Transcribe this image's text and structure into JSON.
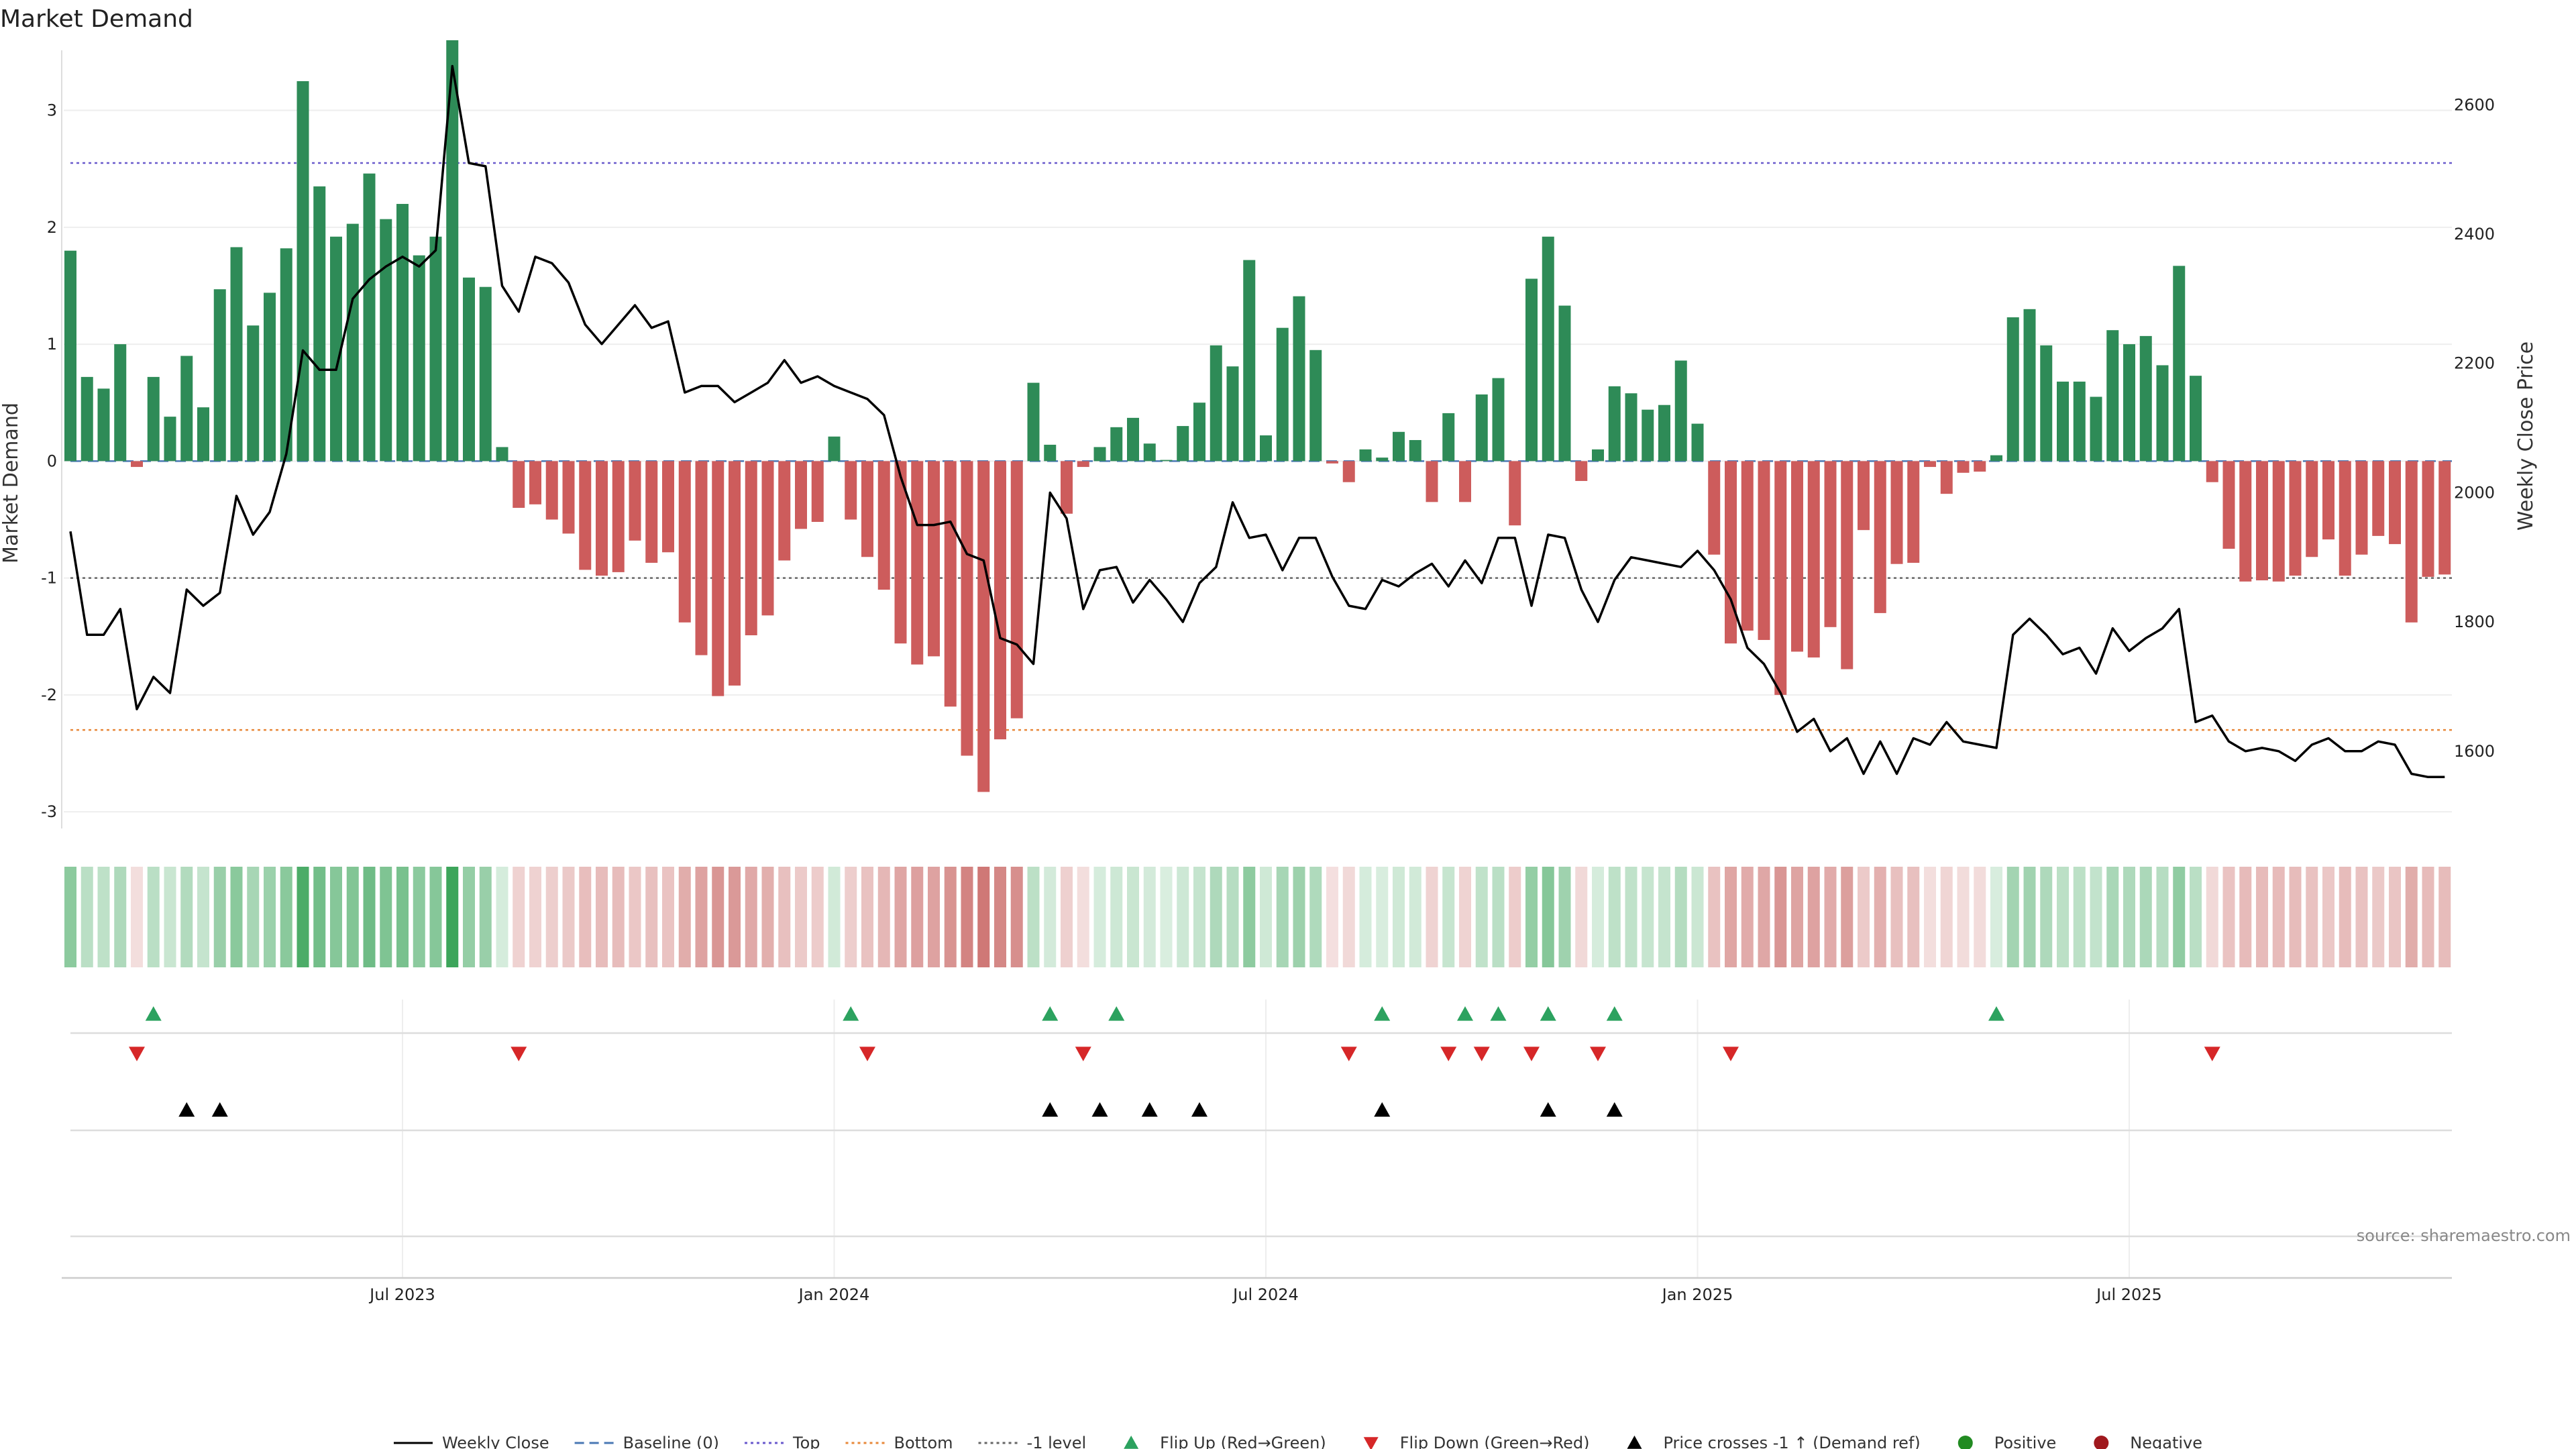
{
  "chart_data": {
    "type": "bar",
    "title": "Market Demand",
    "ylabel": "Market Demand",
    "y2label": "Weekly Close Price",
    "ylim": [
      -3.2,
      3.6
    ],
    "y2lim": [
      1470,
      2700
    ],
    "yticks": [
      -3,
      -2,
      -1,
      0,
      1,
      2,
      3
    ],
    "y2ticks": [
      1600,
      1800,
      2000,
      2200,
      2400,
      2600
    ],
    "reference_lines": {
      "baseline": 0,
      "top": 2.55,
      "bottom": -2.3,
      "minus_one": -1
    },
    "x_ticks": [
      {
        "index": 20,
        "label": "Jul 2023"
      },
      {
        "index": 46,
        "label": "Jan 2024"
      },
      {
        "index": 72,
        "label": "Jul 2024"
      },
      {
        "index": 98,
        "label": "Jan 2025"
      },
      {
        "index": 124,
        "label": "Jul 2025"
      }
    ],
    "demand": [
      1.8,
      0.72,
      0.62,
      1.0,
      -0.05,
      0.72,
      0.38,
      0.9,
      0.46,
      1.47,
      1.83,
      1.16,
      1.44,
      1.82,
      3.25,
      2.35,
      1.92,
      2.03,
      2.46,
      2.07,
      2.2,
      1.76,
      1.92,
      3.6,
      1.57,
      1.49,
      0.12,
      -0.4,
      -0.37,
      -0.5,
      -0.62,
      -0.93,
      -0.98,
      -0.95,
      -0.68,
      -0.87,
      -0.78,
      -1.38,
      -1.66,
      -2.01,
      -1.92,
      -1.49,
      -1.32,
      -0.85,
      -0.58,
      -0.52,
      0.21,
      -0.5,
      -0.82,
      -1.1,
      -1.56,
      -1.74,
      -1.67,
      -2.1,
      -2.52,
      -2.83,
      -2.38,
      -2.2,
      0.67,
      0.14,
      -0.45,
      -0.05,
      0.12,
      0.29,
      0.37,
      0.15,
      0.01,
      0.3,
      0.5,
      0.99,
      0.81,
      1.72,
      0.22,
      1.14,
      1.41,
      0.95,
      -0.02,
      -0.18,
      0.1,
      0.03,
      0.25,
      0.18,
      -0.35,
      0.41,
      -0.35,
      0.57,
      0.71,
      -0.55,
      1.56,
      1.92,
      1.33,
      -0.17,
      0.1,
      0.64,
      0.58,
      0.44,
      0.48,
      0.86,
      0.32,
      -0.8,
      -1.56,
      -1.45,
      -1.53,
      -2.0,
      -1.63,
      -1.68,
      -1.42,
      -1.78,
      -0.59,
      -1.3,
      -0.88,
      -0.87,
      -0.05,
      -0.28,
      -0.1,
      -0.09,
      0.05,
      1.23,
      1.3,
      0.99,
      0.68,
      0.68,
      0.55,
      1.12,
      1.0,
      1.07,
      0.82,
      1.67,
      0.73,
      -0.18,
      -0.75,
      -1.03,
      -1.02,
      -1.03,
      -0.98,
      -0.82,
      -0.67,
      -0.98,
      -0.8,
      -0.64,
      -0.71,
      -1.38,
      -0.99,
      -0.97
    ],
    "close": [
      1940,
      1780,
      1780,
      1820,
      1665,
      1715,
      1690,
      1850,
      1825,
      1845,
      1995,
      1935,
      1970,
      2060,
      2220,
      2190,
      2190,
      2300,
      2330,
      2350,
      2365,
      2350,
      2375,
      2660,
      2510,
      2505,
      2320,
      2280,
      2365,
      2355,
      2325,
      2260,
      2230,
      2260,
      2290,
      2255,
      2265,
      2155,
      2165,
      2165,
      2140,
      2155,
      2170,
      2205,
      2170,
      2180,
      2165,
      2155,
      2145,
      2120,
      2025,
      1950,
      1950,
      1955,
      1905,
      1895,
      1775,
      1765,
      1735,
      2000,
      1960,
      1820,
      1880,
      1885,
      1830,
      1865,
      1835,
      1800,
      1860,
      1885,
      1985,
      1930,
      1935,
      1880,
      1930,
      1930,
      1870,
      1825,
      1820,
      1865,
      1855,
      1875,
      1890,
      1855,
      1895,
      1860,
      1930,
      1930,
      1825,
      1935,
      1930,
      1850,
      1800,
      1865,
      1900,
      1895,
      1890,
      1885,
      1910,
      1880,
      1835,
      1760,
      1735,
      1690,
      1630,
      1650,
      1600,
      1620,
      1565,
      1615,
      1565,
      1620,
      1610,
      1645,
      1615,
      1610,
      1605,
      1780,
      1805,
      1780,
      1750,
      1760,
      1720,
      1790,
      1755,
      1775,
      1790,
      1820,
      1645,
      1655,
      1615,
      1600,
      1605,
      1600,
      1585,
      1610,
      1620,
      1600,
      1600,
      1615,
      1610,
      1565,
      1560,
      1560
    ],
    "flip_up_indices": [
      5,
      47,
      59,
      63,
      79,
      84,
      86,
      89,
      93,
      116
    ],
    "flip_down_indices": [
      4,
      27,
      48,
      61,
      77,
      83,
      85,
      88,
      92,
      100,
      129
    ],
    "price_cross_indices": [
      7,
      9,
      59,
      62,
      65,
      68,
      79,
      89,
      93
    ],
    "legend": [
      {
        "label": "Weekly Close",
        "kind": "solid-line",
        "color": "#000000"
      },
      {
        "label": "Baseline (0)",
        "kind": "dashed-line",
        "color": "#4a78b4"
      },
      {
        "label": "Top",
        "kind": "dotted-line",
        "color": "#6a5acd"
      },
      {
        "label": "Bottom",
        "kind": "dotted-line",
        "color": "#e8883a"
      },
      {
        "label": "-1 level",
        "kind": "dotted-line",
        "color": "#666666"
      },
      {
        "label": "Flip Up (Red→Green)",
        "kind": "up-triangle",
        "color": "#2ca25f"
      },
      {
        "label": "Flip Down (Green→Red)",
        "kind": "down-triangle",
        "color": "#d62728"
      },
      {
        "label": "Price crosses -1 ↑ (Demand ref)",
        "kind": "up-triangle",
        "color": "#000000"
      },
      {
        "label": "Positive",
        "kind": "dot",
        "color": "#228b22"
      },
      {
        "label": "Negative",
        "kind": "dot",
        "color": "#a0191e"
      }
    ]
  },
  "colors": {
    "positive": "#2e8b57",
    "negative": "#cd5c5c",
    "heat_pos": "#2e9e4f",
    "heat_neg": "#c0504d"
  },
  "source_text": "source: sharemaestro.com"
}
